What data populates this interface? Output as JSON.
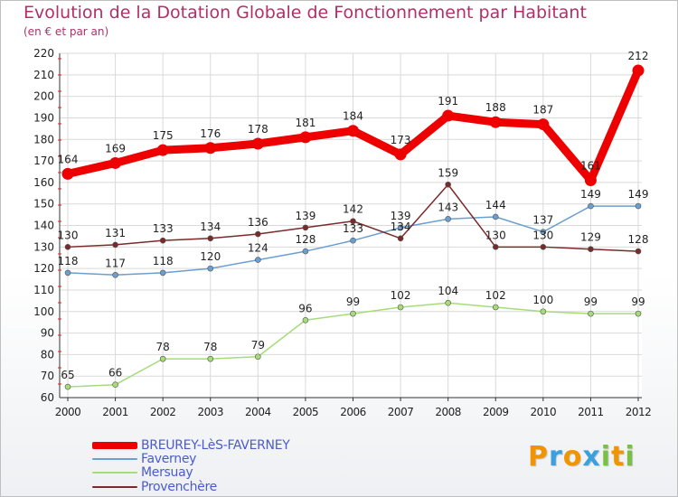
{
  "title": "Evolution de la Dotation Globale de Fonctionnement par Habitant",
  "subtitle": "(en € et par an)",
  "colors": {
    "title": "#b0306a",
    "axis": "#333333",
    "grid": "#d9d9d9",
    "legend_text": "#4a5bd0"
  },
  "legend": [
    {
      "label": "BREUREY-LèS-FAVERNEY",
      "color": "#ee0000"
    },
    {
      "label": "Faverney",
      "color": "#6a9fd0"
    },
    {
      "label": "Mersuay",
      "color": "#a6dc78"
    },
    {
      "label": "Provenchère",
      "color": "#7a2a2a"
    }
  ],
  "logo": {
    "letters": [
      "P",
      "r",
      "o",
      "x",
      "i",
      "t",
      "i"
    ],
    "colors": [
      "#f29400",
      "#3aa0e0",
      "#f29400",
      "#3aa0e0",
      "#7ac143",
      "#f29400",
      "#7ac143"
    ],
    "icon": "proxiti-logo"
  },
  "chart_data": {
    "type": "line",
    "x": [
      "2000",
      "2001",
      "2002",
      "2003",
      "2004",
      "2005",
      "2006",
      "2007",
      "2008",
      "2009",
      "2010",
      "2011",
      "2012"
    ],
    "ylim": [
      60,
      220
    ],
    "yticks": [
      60,
      70,
      80,
      90,
      100,
      110,
      120,
      130,
      140,
      150,
      160,
      170,
      180,
      190,
      200,
      210,
      220
    ],
    "grid": true,
    "legend_position": "bottom-left",
    "series": [
      {
        "name": "BREUREY-LèS-FAVERNEY",
        "values": [
          164,
          169,
          175,
          176,
          178,
          181,
          184,
          173,
          191,
          188,
          187,
          161,
          212
        ],
        "labels": [
          "164",
          "169",
          "175",
          "176",
          "178",
          "181",
          "184",
          "173",
          "191",
          "188",
          "187",
          "161",
          "212"
        ]
      },
      {
        "name": "Faverney",
        "values": [
          118,
          117,
          118,
          120,
          124,
          128,
          133,
          139,
          143,
          144,
          137,
          149,
          149
        ],
        "labels": [
          "118",
          "117",
          "118",
          "120",
          "124",
          "128",
          "133",
          "139",
          "143",
          "144",
          "137",
          "149",
          "149"
        ]
      },
      {
        "name": "Mersuay",
        "values": [
          65,
          66,
          78,
          78,
          79,
          96,
          99,
          102,
          104,
          102,
          100,
          99,
          99
        ],
        "labels": [
          "65",
          "66",
          "78",
          "78",
          "79",
          "96",
          "99",
          "102",
          "104",
          "102",
          "100",
          "99",
          "99"
        ]
      },
      {
        "name": "Provenchère",
        "values": [
          130,
          131,
          133,
          134,
          136,
          139,
          142,
          134,
          159,
          130,
          130,
          129,
          128
        ],
        "labels": [
          "130",
          "131",
          "133",
          "134",
          "136",
          "139",
          "142",
          "134",
          "159",
          "130",
          "130",
          "129",
          "128"
        ]
      }
    ]
  }
}
